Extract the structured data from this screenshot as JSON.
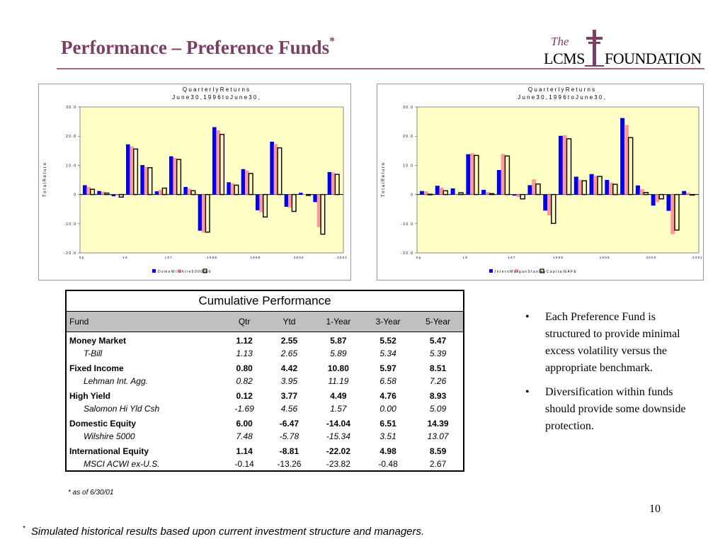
{
  "header": {
    "title": "Performance – Preference Funds",
    "title_mark": "*",
    "logo_the": "The",
    "logo_lcms": "LCMS",
    "logo_foundation": "FOUNDATION"
  },
  "chart_data": [
    {
      "type": "bar",
      "title": "Q u a r t e r l y   R e t u r n s",
      "subtitle": "J u n e   3 0 ,   1 9 9 6   t o   J u n e   3 0 ,",
      "ylabel": "T o t a l   R e t u r n",
      "ylim": [
        -20,
        30
      ],
      "yticks": [
        30,
        20,
        10,
        0,
        -10,
        -20
      ],
      "ytick_labels": [
        "3 0 .  0",
        "2 0 .  0",
        "1 0 .  0",
        "0",
        "- 1 0 .  0",
        "- 2 0 .  0"
      ],
      "xtick_labels": [
        "0 p",
        "1 9",
        "1 9 7",
        "1 9 9 8",
        "1 9 9 9",
        "2 0 0 0",
        "2 0 0 1"
      ],
      "legend_text": "D o m e W i l s h i r e   5 0 0 0   I n d",
      "colors": [
        "#0000ee",
        "#ff9999",
        "#f8f6b8"
      ],
      "series": [
        {
          "values": [
            3.2,
            1.2,
            -0.6,
            17.2,
            10.1,
            1.1,
            13.1,
            2.6,
            -12.4,
            23.1,
            4.2,
            8.7,
            -5.4,
            18.1,
            -4.2,
            0.6,
            -2.6,
            7.7
          ]
        },
        {
          "values": [
            2.6,
            1.0,
            -0.3,
            16.5,
            9.5,
            1.6,
            12.6,
            2.0,
            -13.1,
            22.0,
            3.8,
            8.2,
            -6.1,
            17.3,
            -4.5,
            0.1,
            -11.2,
            7.5
          ]
        },
        {
          "values": [
            1.8,
            0.5,
            -0.9,
            15.6,
            9.2,
            2.2,
            12.0,
            1.3,
            -12.9,
            20.6,
            3.2,
            7.2,
            -7.7,
            16.0,
            -5.8,
            -0.3,
            -13.6,
            6.9
          ]
        }
      ]
    },
    {
      "type": "bar",
      "title": "Q u a r t e r l y   R e t u r n s",
      "subtitle": "J u n e   3 0 ,   1 9 9 6   t o   J u n e   3 0 ,",
      "ylabel": "T o t a l   R e t u r n",
      "ylim": [
        -20,
        30
      ],
      "yticks": [
        30,
        20,
        10,
        0,
        -10,
        -20
      ],
      "ytick_labels": [
        "3 0 .  0",
        "2 0 .  0",
        "1 0 .  0",
        "0",
        "- 1 0 .  0",
        "- 2 0 .  0"
      ],
      "xtick_labels": [
        "0 p",
        "1 9",
        "1 9 7",
        "1 9 9 8",
        "1 9 9 9",
        "2 0 0 0",
        "2 0 0 1"
      ],
      "legend_text": "I n t e r n M o r g a n   S t a n l e y   C a p i t a l   E A F E",
      "colors": [
        "#0000ee",
        "#ff9999",
        "#f8f6b8"
      ],
      "series": [
        {
          "values": [
            1.2,
            3.0,
            2.1,
            13.8,
            1.6,
            8.4,
            -0.4,
            3.2,
            -5.5,
            20.1,
            6.1,
            7.0,
            5.0,
            26.2,
            3.1,
            -3.8,
            -5.6,
            1.2
          ]
        },
        {
          "values": [
            1.1,
            2.3,
            0.2,
            14.1,
            0.9,
            13.9,
            -0.9,
            5.2,
            -7.1,
            20.3,
            5.1,
            6.4,
            4.1,
            23.8,
            1.8,
            -2.6,
            -13.6,
            0.6
          ]
        },
        {
          "values": [
            0.1,
            1.3,
            0.6,
            13.4,
            0.3,
            13.2,
            -1.5,
            3.6,
            -9.9,
            19.1,
            4.7,
            6.2,
            3.5,
            19.5,
            0.7,
            -1.5,
            -12.2,
            -0.1
          ]
        }
      ]
    }
  ],
  "table": {
    "caption": "Cumulative Performance",
    "headers": [
      "Fund",
      "Qtr",
      "Ytd",
      "1-Year",
      "3-Year",
      "5-Year"
    ],
    "rows": [
      {
        "name": "Money Market",
        "vals": [
          "1.12",
          "2.55",
          "5.87",
          "5.52",
          "5.47"
        ],
        "bench": "T-Bill",
        "bench_vals": [
          "1.13",
          "2.65",
          "5.89",
          "5.34",
          "5.39"
        ]
      },
      {
        "name": "Fixed Income",
        "vals": [
          "0.80",
          "4.42",
          "10.80",
          "5.97",
          "8.51"
        ],
        "bench": "Lehman Int. Agg.",
        "bench_vals": [
          "0.82",
          "3.95",
          "11.19",
          "6.58",
          "7.26"
        ]
      },
      {
        "name": "High Yield",
        "vals": [
          "0.12",
          "3.77",
          "4.49",
          "4.76",
          "8.93"
        ],
        "bench": "Salomon Hi Yld Csh",
        "bench_vals": [
          "-1.69",
          "4.56",
          "1.57",
          "0.00",
          "5.09"
        ]
      },
      {
        "name": "Domestic Equity",
        "vals": [
          "6.00",
          "-6.47",
          "-14.04",
          "6.51",
          "14.39"
        ],
        "bench": "Wilshire 5000",
        "bench_vals": [
          "7.48",
          "-5.78",
          "-15.34",
          "3.51",
          "13.07"
        ]
      },
      {
        "name": "International Equity",
        "vals": [
          "1.14",
          "-8.81",
          "-22.02",
          "4.98",
          "8.59"
        ],
        "bench": "MSCI ACWI ex-U.S.",
        "bench_vals": [
          "-0.14",
          "-13.26",
          "-23.82",
          "-0.48",
          "2.67"
        ]
      }
    ],
    "as_of": "* as of 6/30/01"
  },
  "bullets": [
    "Each Preference Fund is structured to provide minimal excess volatility versus the appropriate benchmark.",
    "Diversification within funds should provide some downside protection."
  ],
  "bullet_glyph": "•",
  "page_number": "10",
  "footnote": {
    "mark": "*",
    "text": "Simulated historical results based upon current investment structure and managers."
  }
}
